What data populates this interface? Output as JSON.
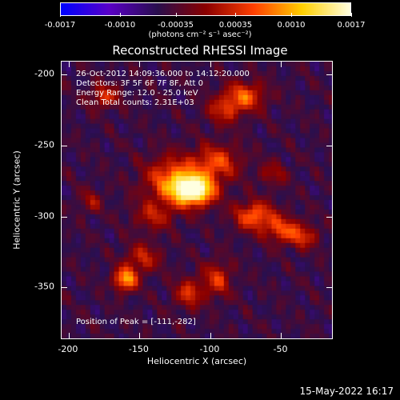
{
  "colorbar": {
    "tick_labels": [
      "-0.0017",
      "-0.0010",
      "-0.00035",
      "0.00035",
      "0.0010",
      "0.0017"
    ],
    "tick_values": [
      -0.0017,
      -0.001,
      -0.00035,
      0.00035,
      0.001,
      0.0017
    ],
    "range": [
      -0.0017,
      0.0017
    ],
    "units": "(photons cm⁻² s⁻¹ asec⁻²)",
    "colormap": [
      "#0000ff",
      "#5a00c8",
      "#2a0f4e",
      "#8b0000",
      "#ff4000",
      "#ffd000",
      "#ffffe0"
    ]
  },
  "plot": {
    "title": "Reconstructed RHESSI Image",
    "info_lines": [
      "26-Oct-2012 14:09:36.000 to 14:12:20.000",
      "Detectors: 3F 5F 6F 7F 8F, Att 0",
      "Energy Range: 12.0 - 25.0 keV",
      "Clean     Total counts: 2.31E+03"
    ],
    "peak_label": "Position of Peak = [-111,-282]",
    "peak": [
      -111,
      -282
    ]
  },
  "axes": {
    "xlabel": "Heliocentric X (arcsec)",
    "ylabel": "Heliocentric Y (arcsec)",
    "xlim": [
      -205,
      -13
    ],
    "ylim": [
      -387,
      -191
    ],
    "x_ticks": [
      -200,
      -150,
      -100,
      -50
    ],
    "x_tick_labels": [
      "-200",
      "-150",
      "-100",
      "-50"
    ],
    "y_ticks": [
      -200,
      -250,
      -300,
      -350
    ],
    "y_tick_labels": [
      "-200",
      "-250",
      "-300",
      "-350"
    ]
  },
  "timestamp": "15-May-2022 16:17"
}
